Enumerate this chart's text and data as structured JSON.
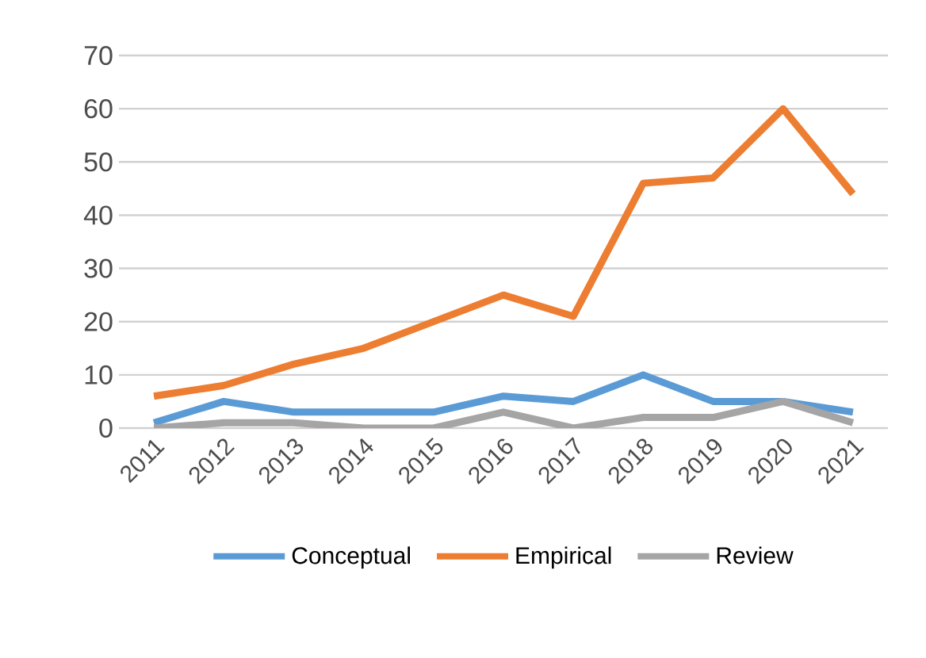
{
  "chart_data": {
    "type": "line",
    "categories": [
      "2011",
      "2012",
      "2013",
      "2014",
      "2015",
      "2016",
      "2017",
      "2018",
      "2019",
      "2020",
      "2021"
    ],
    "series": [
      {
        "name": "Conceptual",
        "color": "#5b9bd5",
        "values": [
          1,
          5,
          3,
          3,
          3,
          6,
          5,
          10,
          5,
          5,
          3
        ]
      },
      {
        "name": "Empirical",
        "color": "#ed7d31",
        "values": [
          6,
          8,
          12,
          15,
          20,
          25,
          21,
          46,
          47,
          60,
          44
        ]
      },
      {
        "name": "Review",
        "color": "#a5a5a5",
        "values": [
          0,
          1,
          1,
          0,
          0,
          3,
          0,
          2,
          2,
          5,
          1
        ]
      }
    ],
    "ylim": [
      0,
      70
    ],
    "yticks": [
      0,
      10,
      20,
      30,
      40,
      50,
      60,
      70
    ],
    "grid": "y",
    "legend": "bottom",
    "marker": "none",
    "line_style": "solid"
  }
}
